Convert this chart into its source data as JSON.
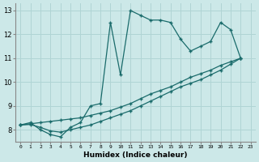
{
  "xlabel": "Humidex (Indice chaleur)",
  "bg_color": "#cce8e8",
  "grid_color": "#b0d4d4",
  "line_color": "#1a6b6b",
  "jagged_x": [
    0,
    1,
    2,
    3,
    4,
    5,
    6,
    7,
    8,
    9,
    10,
    11,
    12,
    13,
    14,
    15,
    16,
    17,
    18,
    19,
    20,
    21,
    22
  ],
  "jagged_y": [
    8.2,
    8.3,
    8.0,
    7.8,
    7.7,
    8.1,
    8.3,
    9.0,
    9.1,
    12.5,
    10.3,
    13.0,
    12.8,
    12.6,
    12.6,
    12.5,
    11.8,
    11.3,
    11.5,
    11.7,
    12.5,
    12.2,
    11.0
  ],
  "straight1_x": [
    0,
    1,
    2,
    3,
    4,
    5,
    6,
    7,
    8,
    9,
    10,
    11,
    12,
    13,
    14,
    15,
    16,
    17,
    18,
    19,
    20,
    21,
    22
  ],
  "straight1_y": [
    8.2,
    8.25,
    8.3,
    8.35,
    8.4,
    8.45,
    8.5,
    8.6,
    8.7,
    8.8,
    8.95,
    9.1,
    9.3,
    9.5,
    9.65,
    9.8,
    10.0,
    10.2,
    10.35,
    10.5,
    10.7,
    10.85,
    11.0
  ],
  "straight2_x": [
    0,
    1,
    2,
    3,
    4,
    5,
    6,
    7,
    8,
    9,
    10,
    11,
    12,
    13,
    14,
    15,
    16,
    17,
    18,
    19,
    20,
    21,
    22
  ],
  "straight2_y": [
    8.2,
    8.22,
    8.1,
    7.95,
    7.9,
    8.0,
    8.1,
    8.2,
    8.35,
    8.5,
    8.65,
    8.8,
    9.0,
    9.2,
    9.4,
    9.6,
    9.8,
    9.95,
    10.1,
    10.3,
    10.5,
    10.75,
    11.0
  ],
  "ylim": [
    7.5,
    13.3
  ],
  "xlim": [
    -0.5,
    23.5
  ],
  "yticks": [
    8,
    9,
    10,
    11,
    12,
    13
  ],
  "xticks": [
    0,
    1,
    2,
    3,
    4,
    5,
    6,
    7,
    8,
    9,
    10,
    11,
    12,
    13,
    14,
    15,
    16,
    17,
    18,
    19,
    20,
    21,
    22,
    23
  ]
}
